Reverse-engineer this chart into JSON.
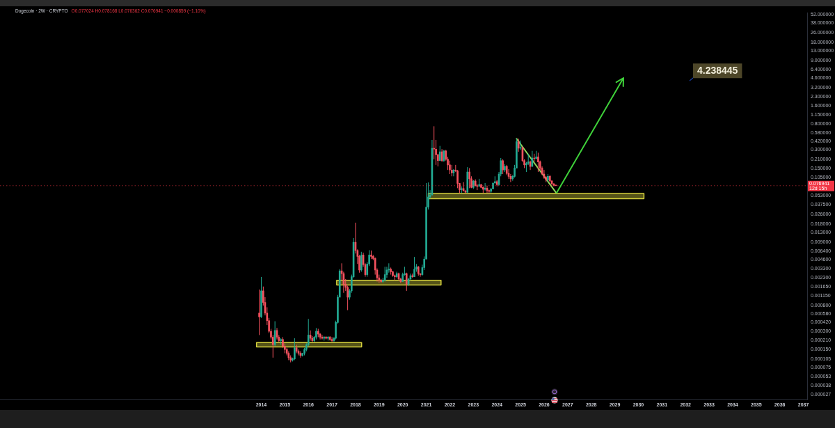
{
  "chart_data": {
    "type": "candlestick",
    "title": "Dogecoin · 2W · CRYPTO",
    "subtitle": "O0.077024 H0.078168 L0.076362 C0.076941 −0.000859 (−1.10%)",
    "log": "y",
    "marker": "none",
    "line_style": "solid",
    "xlim": [
      "2002-12",
      "2037-03"
    ],
    "xticks": [
      "2014",
      "2015",
      "2016",
      "2017",
      "2018",
      "2019",
      "2020",
      "2021",
      "2022",
      "2023",
      "2024",
      "2025",
      "2026",
      "2027",
      "2028",
      "2029",
      "2030",
      "2031",
      "2032",
      "2033",
      "2034",
      "2035",
      "2036",
      "2037"
    ],
    "ylim": [
      2.2e-05,
      56
    ],
    "yticks": [
      {
        "value": 52,
        "label": "52.000000"
      },
      {
        "value": 38,
        "label": "38.000000"
      },
      {
        "value": 26,
        "label": "26.000000"
      },
      {
        "value": 18,
        "label": "18.000000"
      },
      {
        "value": 13,
        "label": "13.000000"
      },
      {
        "value": 9,
        "label": "9.000000"
      },
      {
        "value": 6.4,
        "label": "6.400000"
      },
      {
        "value": 4.6,
        "label": "4.600000"
      },
      {
        "value": 3.2,
        "label": "3.200000"
      },
      {
        "value": 2.3,
        "label": "2.300000"
      },
      {
        "value": 1.6,
        "label": "1.600000"
      },
      {
        "value": 1.15,
        "label": "1.150000"
      },
      {
        "value": 0.8,
        "label": "0.800000"
      },
      {
        "value": 0.58,
        "label": "0.580000"
      },
      {
        "value": 0.42,
        "label": "0.420000"
      },
      {
        "value": 0.3,
        "label": "0.300000"
      },
      {
        "value": 0.21,
        "label": "0.210000"
      },
      {
        "value": 0.15,
        "label": "0.150000"
      },
      {
        "value": 0.105,
        "label": "0.105000"
      },
      {
        "value": 0.053,
        "label": "0.053000"
      },
      {
        "value": 0.0375,
        "label": "0.037500"
      },
      {
        "value": 0.026,
        "label": "0.026000"
      },
      {
        "value": 0.018,
        "label": "0.018000"
      },
      {
        "value": 0.013,
        "label": "0.013000"
      },
      {
        "value": 0.009,
        "label": "0.009000"
      },
      {
        "value": 0.0064,
        "label": "0.006400"
      },
      {
        "value": 0.0046,
        "label": "0.004600"
      },
      {
        "value": 0.0033,
        "label": "0.003300"
      },
      {
        "value": 0.0023,
        "label": "0.002300"
      },
      {
        "value": 0.00165,
        "label": "0.001650"
      },
      {
        "value": 0.00115,
        "label": "0.001150"
      },
      {
        "value": 0.0008,
        "label": "0.000800"
      },
      {
        "value": 0.00058,
        "label": "0.000580"
      },
      {
        "value": 0.00042,
        "label": "0.000420"
      },
      {
        "value": 0.0003,
        "label": "0.000300"
      },
      {
        "value": 0.00021,
        "label": "0.000210"
      },
      {
        "value": 0.00015,
        "label": "0.000150"
      },
      {
        "value": 0.000105,
        "label": "0.000105"
      },
      {
        "value": 7.5e-05,
        "label": "0.000075"
      },
      {
        "value": 5.3e-05,
        "label": "0.000053"
      },
      {
        "value": 3.8e-05,
        "label": "0.000038"
      },
      {
        "value": 2.7e-05,
        "label": "0.000027"
      }
    ],
    "series": [
      {
        "type": "area",
        "color": "#d4d03c",
        "x": [
          "2013-10-20",
          "2018-04-05",
          "2018-04-05",
          "2013-10-20",
          "2013-10-20"
        ],
        "values": [
          0.000165,
          0.000165,
          0.000195,
          0.000195,
          0.000165
        ]
      },
      {
        "type": "area",
        "color": "#d4d03c",
        "x": [
          "2017-03-15",
          "2021-08-18",
          "2021-08-18",
          "2017-03-15",
          "2017-03-15"
        ],
        "values": [
          0.00175,
          0.00175,
          0.0021,
          0.0021,
          0.00175
        ]
      },
      {
        "type": "area",
        "color": "#d4d03c",
        "x": [
          "2021-02-02",
          "2030-03-28",
          "2030-03-28",
          "2021-02-02",
          "2021-02-02"
        ],
        "values": [
          0.047,
          0.047,
          0.057,
          0.057,
          0.047
        ]
      },
      {
        "type": "line",
        "color": "#8ed65a",
        "x": [
          "2024-11",
          "2026-07-10"
        ],
        "values": [
          0.46,
          0.058
        ]
      },
      {
        "x": [
          "2013-12",
          "2014-01",
          "2014-02",
          "2014-03",
          "2014-04",
          "2014-05",
          "2014-06",
          "2014-07",
          "2014-08",
          "2014-09",
          "2014-10",
          "2014-11",
          "2014-12",
          "2015-01",
          "2015-02",
          "2015-03",
          "2015-04",
          "2015-05",
          "2015-06",
          "2015-07",
          "2015-08",
          "2015-09",
          "2015-10",
          "2015-11",
          "2015-12",
          "2016-01",
          "2016-02",
          "2016-03",
          "2016-04",
          "2016-05",
          "2016-06",
          "2016-07",
          "2016-08",
          "2016-09",
          "2016-10",
          "2016-11",
          "2016-12",
          "2017-01",
          "2017-02",
          "2017-03",
          "2017-04",
          "2017-05",
          "2017-06",
          "2017-07",
          "2017-08",
          "2017-09",
          "2017-10",
          "2017-11",
          "2017-12",
          "2018-01",
          "2018-02",
          "2018-03",
          "2018-04",
          "2018-05",
          "2018-06",
          "2018-07",
          "2018-08",
          "2018-09",
          "2018-10",
          "2018-11",
          "2018-12",
          "2019-01",
          "2019-02",
          "2019-03",
          "2019-04",
          "2019-05",
          "2019-06",
          "2019-07",
          "2019-08",
          "2019-09",
          "2019-10",
          "2019-11",
          "2019-12",
          "2020-01",
          "2020-02",
          "2020-03",
          "2020-04",
          "2020-05",
          "2020-06",
          "2020-07",
          "2020-08",
          "2020-09",
          "2020-10",
          "2020-11",
          "2020-12",
          "2021-01",
          "2021-02",
          "2021-03",
          "2021-04",
          "2021-05",
          "2021-06",
          "2021-07",
          "2021-08",
          "2021-09",
          "2021-10",
          "2021-11",
          "2021-12",
          "2022-01",
          "2022-02",
          "2022-03",
          "2022-04",
          "2022-05",
          "2022-06",
          "2022-07",
          "2022-08",
          "2022-09",
          "2022-10",
          "2022-11",
          "2022-12",
          "2023-01",
          "2023-02",
          "2023-03",
          "2023-04",
          "2023-05",
          "2023-06",
          "2023-07",
          "2023-08",
          "2023-09",
          "2023-10",
          "2023-11",
          "2023-12",
          "2024-01",
          "2024-02",
          "2024-03",
          "2024-04",
          "2024-05",
          "2024-06",
          "2024-07",
          "2024-08",
          "2024-09",
          "2024-10",
          "2024-11",
          "2024-12",
          "2025-01",
          "2025-02",
          "2025-03",
          "2025-04",
          "2025-05",
          "2025-06",
          "2025-07",
          "2025-08",
          "2025-09",
          "2025-10",
          "2025-11",
          "2025-12",
          "2026-01",
          "2026-02",
          "2026-03",
          "2026-04",
          "2026-05",
          "2026-06",
          "2026-07"
        ],
        "ohlc": [
          [
            0.0006,
            0.00147,
            0.00026,
            0.00052
          ],
          [
            0.00052,
            0.00238,
            0.0005,
            0.0014
          ],
          [
            0.0014,
            0.00165,
            0.0008,
            0.0009
          ],
          [
            0.0009,
            0.0011,
            0.00055,
            0.0006
          ],
          [
            0.0006,
            0.00075,
            0.00038,
            0.00045
          ],
          [
            0.00045,
            0.0005,
            0.00028,
            0.0003
          ],
          [
            0.0003,
            0.00033,
            0.00022,
            0.00024
          ],
          [
            0.00024,
            0.00026,
            0.00011,
            0.00018
          ],
          [
            0.00018,
            0.00044,
            0.00017,
            0.00031
          ],
          [
            0.00031,
            0.00034,
            0.00022,
            0.00024
          ],
          [
            0.00024,
            0.00026,
            0.0002,
            0.00021
          ],
          [
            0.00021,
            0.00023,
            0.00018,
            0.00022
          ],
          [
            0.00022,
            0.00024,
            0.00016,
            0.00017
          ],
          [
            0.00017,
            0.00019,
            0.00013,
            0.00015
          ],
          [
            0.00015,
            0.00016,
            0.00012,
            0.00013
          ],
          [
            0.00013,
            0.00014,
            0.0001,
            0.00011
          ],
          [
            0.00011,
            0.00012,
            9.2e-05,
            0.0001
          ],
          [
            0.0001,
            0.00011,
            9.5e-05,
            0.000105
          ],
          [
            0.000105,
            0.00023,
            0.0001,
            0.00016
          ],
          [
            0.00016,
            0.00018,
            0.00013,
            0.00014
          ],
          [
            0.00014,
            0.00015,
            0.00012,
            0.00013
          ],
          [
            0.00013,
            0.00014,
            0.00011,
            0.00012
          ],
          [
            0.00012,
            0.00013,
            0.000115,
            0.00013
          ],
          [
            0.00013,
            0.00016,
            0.00012,
            0.00015
          ],
          [
            0.00015,
            0.00019,
            0.00014,
            0.00018
          ],
          [
            0.00018,
            0.00048,
            0.00017,
            0.00026
          ],
          [
            0.00026,
            0.00031,
            0.00021,
            0.00023
          ],
          [
            0.00023,
            0.00025,
            0.0002,
            0.00021
          ],
          [
            0.00021,
            0.00025,
            0.0002,
            0.00024
          ],
          [
            0.00024,
            0.00034,
            0.00022,
            0.0003
          ],
          [
            0.0003,
            0.00033,
            0.00024,
            0.00027
          ],
          [
            0.00027,
            0.00028,
            0.00022,
            0.00024
          ],
          [
            0.00024,
            0.00026,
            0.00022,
            0.00023
          ],
          [
            0.00023,
            0.00025,
            0.00021,
            0.00024
          ],
          [
            0.00024,
            0.00025,
            0.00022,
            0.00023
          ],
          [
            0.00023,
            0.00025,
            0.00021,
            0.00024
          ],
          [
            0.00024,
            0.00025,
            0.00021,
            0.00022
          ],
          [
            0.00022,
            0.00024,
            0.0002,
            0.00021
          ],
          [
            0.00021,
            0.00024,
            0.0002,
            0.00023
          ],
          [
            0.00023,
            0.00045,
            0.00022,
            0.00042
          ],
          [
            0.00042,
            0.0012,
            0.0004,
            0.0011
          ],
          [
            0.0011,
            0.0032,
            0.0011,
            0.003
          ],
          [
            0.003,
            0.004,
            0.0021,
            0.0027
          ],
          [
            0.0027,
            0.0029,
            0.0013,
            0.0018
          ],
          [
            0.0018,
            0.0022,
            0.0014,
            0.0016
          ],
          [
            0.0016,
            0.0017,
            0.00067,
            0.0011
          ],
          [
            0.0011,
            0.0015,
            0.001,
            0.0014
          ],
          [
            0.0014,
            0.0026,
            0.0013,
            0.0024
          ],
          [
            0.0024,
            0.0105,
            0.0023,
            0.0089
          ],
          [
            0.0089,
            0.0188,
            0.0058,
            0.0065
          ],
          [
            0.0065,
            0.0068,
            0.0039,
            0.0052
          ],
          [
            0.0052,
            0.0055,
            0.0028,
            0.0031
          ],
          [
            0.0031,
            0.0062,
            0.0029,
            0.0055
          ],
          [
            0.0055,
            0.006,
            0.0035,
            0.0038
          ],
          [
            0.0038,
            0.004,
            0.0024,
            0.0026
          ],
          [
            0.0026,
            0.0042,
            0.0024,
            0.0039
          ],
          [
            0.0039,
            0.0066,
            0.0036,
            0.0055
          ],
          [
            0.0055,
            0.0065,
            0.0047,
            0.0052
          ],
          [
            0.0052,
            0.0055,
            0.0045,
            0.0048
          ],
          [
            0.0048,
            0.005,
            0.0026,
            0.0031
          ],
          [
            0.0031,
            0.0033,
            0.002,
            0.0023
          ],
          [
            0.0023,
            0.0026,
            0.0019,
            0.0021
          ],
          [
            0.0021,
            0.0022,
            0.0019,
            0.002
          ],
          [
            0.002,
            0.0023,
            0.0019,
            0.0021
          ],
          [
            0.0021,
            0.0035,
            0.002,
            0.0026
          ],
          [
            0.0026,
            0.0035,
            0.0023,
            0.0031
          ],
          [
            0.0031,
            0.004,
            0.0028,
            0.0032
          ],
          [
            0.0032,
            0.0034,
            0.0026,
            0.0029
          ],
          [
            0.0029,
            0.003,
            0.0024,
            0.0025
          ],
          [
            0.0025,
            0.0026,
            0.0021,
            0.0024
          ],
          [
            0.0024,
            0.0029,
            0.0023,
            0.0027
          ],
          [
            0.0027,
            0.0028,
            0.0021,
            0.0022
          ],
          [
            0.0022,
            0.0023,
            0.0019,
            0.002
          ],
          [
            0.002,
            0.0028,
            0.002,
            0.0026
          ],
          [
            0.0026,
            0.0035,
            0.0025,
            0.0027
          ],
          [
            0.0027,
            0.0028,
            0.0014,
            0.0018
          ],
          [
            0.0018,
            0.0023,
            0.0017,
            0.0022
          ],
          [
            0.0022,
            0.0027,
            0.0021,
            0.0025
          ],
          [
            0.0025,
            0.0027,
            0.0023,
            0.0024
          ],
          [
            0.0024,
            0.0051,
            0.0024,
            0.0032
          ],
          [
            0.0032,
            0.0039,
            0.0029,
            0.0035
          ],
          [
            0.0035,
            0.0036,
            0.0025,
            0.0027
          ],
          [
            0.0027,
            0.0027,
            0.0024,
            0.0026
          ],
          [
            0.0026,
            0.0038,
            0.0025,
            0.0034
          ],
          [
            0.0034,
            0.0052,
            0.0031,
            0.0047
          ],
          [
            0.0047,
            0.085,
            0.0047,
            0.034
          ],
          [
            0.034,
            0.087,
            0.031,
            0.05
          ],
          [
            0.05,
            0.065,
            0.047,
            0.054
          ],
          [
            0.054,
            0.44,
            0.053,
            0.32
          ],
          [
            0.32,
            0.74,
            0.21,
            0.31
          ],
          [
            0.31,
            0.44,
            0.17,
            0.25
          ],
          [
            0.25,
            0.26,
            0.16,
            0.2
          ],
          [
            0.2,
            0.35,
            0.2,
            0.28
          ],
          [
            0.28,
            0.31,
            0.19,
            0.2
          ],
          [
            0.2,
            0.3,
            0.19,
            0.29
          ],
          [
            0.29,
            0.3,
            0.2,
            0.21
          ],
          [
            0.21,
            0.23,
            0.14,
            0.17
          ],
          [
            0.17,
            0.2,
            0.12,
            0.14
          ],
          [
            0.14,
            0.17,
            0.11,
            0.125
          ],
          [
            0.125,
            0.145,
            0.11,
            0.14
          ],
          [
            0.14,
            0.17,
            0.13,
            0.135
          ],
          [
            0.135,
            0.14,
            0.07,
            0.084
          ],
          [
            0.084,
            0.085,
            0.058,
            0.066
          ],
          [
            0.066,
            0.075,
            0.058,
            0.069
          ],
          [
            0.069,
            0.088,
            0.062,
            0.063
          ],
          [
            0.063,
            0.065,
            0.058,
            0.06
          ],
          [
            0.06,
            0.156,
            0.058,
            0.13
          ],
          [
            0.13,
            0.15,
            0.07,
            0.1
          ],
          [
            0.1,
            0.11,
            0.07,
            0.072
          ],
          [
            0.072,
            0.095,
            0.068,
            0.092
          ],
          [
            0.092,
            0.098,
            0.075,
            0.077
          ],
          [
            0.077,
            0.082,
            0.065,
            0.075
          ],
          [
            0.075,
            0.1,
            0.075,
            0.08
          ],
          [
            0.08,
            0.082,
            0.07,
            0.072
          ],
          [
            0.072,
            0.075,
            0.058,
            0.067
          ],
          [
            0.067,
            0.085,
            0.064,
            0.07
          ],
          [
            0.07,
            0.077,
            0.058,
            0.064
          ],
          [
            0.064,
            0.066,
            0.058,
            0.062
          ],
          [
            0.062,
            0.07,
            0.058,
            0.068
          ],
          [
            0.068,
            0.086,
            0.067,
            0.085
          ],
          [
            0.085,
            0.11,
            0.085,
            0.09
          ],
          [
            0.09,
            0.095,
            0.075,
            0.08
          ],
          [
            0.08,
            0.13,
            0.077,
            0.12
          ],
          [
            0.12,
            0.221,
            0.11,
            0.2
          ],
          [
            0.2,
            0.21,
            0.12,
            0.14
          ],
          [
            0.14,
            0.175,
            0.13,
            0.16
          ],
          [
            0.16,
            0.17,
            0.115,
            0.123
          ],
          [
            0.123,
            0.145,
            0.1,
            0.11
          ],
          [
            0.11,
            0.12,
            0.088,
            0.1
          ],
          [
            0.1,
            0.115,
            0.093,
            0.11
          ],
          [
            0.11,
            0.17,
            0.105,
            0.15
          ],
          [
            0.15,
            0.46,
            0.15,
            0.41
          ],
          [
            0.41,
            0.46,
            0.28,
            0.32
          ],
          [
            0.32,
            0.43,
            0.3,
            0.33
          ],
          [
            0.33,
            0.34,
            0.19,
            0.2
          ],
          [
            0.2,
            0.21,
            0.15,
            0.17
          ],
          [
            0.17,
            0.19,
            0.13,
            0.18
          ],
          [
            0.18,
            0.26,
            0.17,
            0.19
          ],
          [
            0.19,
            0.2,
            0.14,
            0.16
          ],
          [
            0.16,
            0.29,
            0.16,
            0.22
          ],
          [
            0.22,
            0.26,
            0.19,
            0.215
          ],
          [
            0.215,
            0.29,
            0.21,
            0.23
          ],
          [
            0.23,
            0.27,
            0.13,
            0.19
          ],
          [
            0.19,
            0.2,
            0.14,
            0.15
          ],
          [
            0.15,
            0.16,
            0.115,
            0.12
          ],
          [
            0.12,
            0.14,
            0.1,
            0.105
          ],
          [
            0.105,
            0.11,
            0.088,
            0.095
          ],
          [
            0.095,
            0.12,
            0.09,
            0.11
          ],
          [
            0.11,
            0.115,
            0.09,
            0.092
          ],
          [
            0.092,
            0.095,
            0.08,
            0.082
          ],
          [
            0.082,
            0.085,
            0.075,
            0.0778
          ],
          [
            0.0778,
            0.0782,
            0.0764,
            0.0769
          ]
        ],
        "colors": [
          "#f7525f",
          "#22ab94",
          "#f7525f",
          "#f7525f",
          "#f7525f",
          "#f7525f",
          "#f7525f",
          "#f7525f",
          "#22ab94",
          "#f7525f",
          "#f7525f",
          "#22ab94",
          "#f7525f",
          "#f7525f",
          "#f7525f",
          "#f7525f",
          "#f7525f",
          "#22ab94",
          "#22ab94",
          "#f7525f",
          "#f7525f",
          "#f7525f",
          "#22ab94",
          "#22ab94",
          "#22ab94",
          "#22ab94",
          "#f7525f",
          "#f7525f",
          "#22ab94",
          "#22ab94",
          "#f7525f",
          "#f7525f",
          "#f7525f",
          "#22ab94",
          "#f7525f",
          "#22ab94",
          "#f7525f",
          "#f7525f",
          "#22ab94",
          "#22ab94",
          "#22ab94",
          "#22ab94",
          "#f7525f",
          "#f7525f",
          "#f7525f",
          "#f7525f",
          "#22ab94",
          "#22ab94",
          "#22ab94",
          "#f7525f",
          "#f7525f",
          "#f7525f",
          "#22ab94",
          "#f7525f",
          "#f7525f",
          "#22ab94",
          "#22ab94",
          "#f7525f",
          "#f7525f",
          "#f7525f",
          "#f7525f",
          "#f7525f",
          "#f7525f",
          "#22ab94",
          "#22ab94",
          "#22ab94",
          "#22ab94",
          "#f7525f",
          "#f7525f",
          "#f7525f",
          "#22ab94",
          "#f7525f",
          "#f7525f",
          "#22ab94",
          "#22ab94",
          "#f7525f",
          "#22ab94",
          "#22ab94",
          "#f7525f",
          "#22ab94",
          "#22ab94",
          "#f7525f",
          "#f7525f",
          "#22ab94",
          "#22ab94",
          "#22ab94",
          "#22ab94",
          "#22ab94",
          "#22ab94",
          "#f7525f",
          "#f7525f",
          "#f7525f",
          "#22ab94",
          "#f7525f",
          "#22ab94",
          "#f7525f",
          "#f7525f",
          "#f7525f",
          "#f7525f",
          "#22ab94",
          "#f7525f",
          "#f7525f",
          "#f7525f",
          "#22ab94",
          "#f7525f",
          "#f7525f",
          "#22ab94",
          "#f7525f",
          "#f7525f",
          "#22ab94",
          "#f7525f",
          "#f7525f",
          "#22ab94",
          "#f7525f",
          "#f7525f",
          "#22ab94",
          "#f7525f",
          "#f7525f",
          "#22ab94",
          "#22ab94",
          "#22ab94",
          "#f7525f",
          "#22ab94",
          "#22ab94",
          "#f7525f",
          "#22ab94",
          "#f7525f",
          "#f7525f",
          "#f7525f",
          "#22ab94",
          "#22ab94",
          "#22ab94",
          "#f7525f",
          "#22ab94",
          "#f7525f",
          "#f7525f",
          "#22ab94",
          "#22ab94",
          "#f7525f",
          "#22ab94",
          "#f7525f",
          "#22ab94",
          "#f7525f",
          "#f7525f",
          "#f7525f",
          "#f7525f",
          "#f7525f",
          "#22ab94",
          "#f7525f",
          "#f7525f",
          "#f7525f",
          "#f7525f"
        ]
      }
    ],
    "ref_lines": [
      {
        "axis": "y",
        "value": 0.076941,
        "label": "0.076941\n12d 15h",
        "color": "#f23645",
        "line_style": "dotted"
      }
    ],
    "annotations": [
      "4.238445"
    ]
  }
}
